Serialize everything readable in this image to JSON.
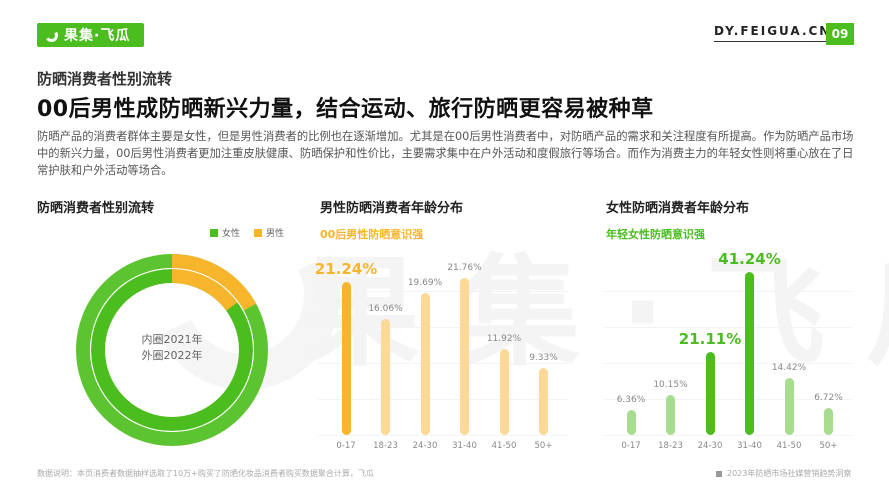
{
  "header": {
    "logo_text": "果集·飞瓜",
    "site": "DY.FEIGUA.CN",
    "page_number": "09",
    "brand_color": "#4cbd1f"
  },
  "watermark": "果集·飞瓜",
  "subtitle": "防晒消费者性别流转",
  "title": "00后男性成防晒新兴力量，结合运动、旅行防晒更容易被种草",
  "paragraph": "防晒产品的消费者群体主要是女性，但是男性消费者的比例也在逐渐增加。尤其是在00后男性消费者中，对防晒产品的需求和关注程度有所提高。作为防晒产品市场中的新兴力量，00后男性消费者更加注重皮肤健康、防晒保护和性价比，主要需求集中在户外活动和度假旅行等场合。而作为消费主力的年轻女性则将重心放在了日常护肤和户外活动等场合。",
  "footer": {
    "note": "数据说明：本页消费者数据抽样选取了10万+购买了防晒化妆品消费者购买数据聚合计算，飞瓜",
    "report": "2023年防晒市场社媒营销趋势洞察"
  },
  "chart_data": [
    {
      "type": "pie",
      "variant": "double-donut",
      "title": "防晒消费者性别流转",
      "center_label": [
        "内圈2021年",
        "外圈2022年"
      ],
      "legend": [
        {
          "name": "女性",
          "color": "#4cbd1f"
        },
        {
          "name": "男性",
          "color": "#f7b52b"
        }
      ],
      "series": [
        {
          "name": "内圈2021年",
          "values": {
            "女性": 85,
            "男性": 15
          }
        },
        {
          "name": "外圈2022年",
          "values": {
            "女性": 83,
            "男性": 17
          }
        }
      ],
      "note": "Ring percentages are estimated from arc angles; not labeled in the figure"
    },
    {
      "type": "bar",
      "title": "男性防晒消费者年龄分布",
      "highlight": "00后男性防晒意识强",
      "highlight_color": "#f7b52b",
      "categories": [
        "0-17",
        "18-23",
        "24-30",
        "31-40",
        "41-50",
        "50+"
      ],
      "values": [
        21.24,
        16.06,
        19.69,
        21.76,
        11.92,
        9.33
      ],
      "labels": [
        "21.24%",
        "16.06%",
        "19.69%",
        "21.76%",
        "11.92%",
        "9.33%"
      ],
      "emphasized_index": 0,
      "unit": "%"
    },
    {
      "type": "bar",
      "title": "女性防晒消费者年龄分布",
      "highlight": "年轻女性防晒意识强",
      "highlight_color": "#4cbd1f",
      "categories": [
        "0-17",
        "18-23",
        "24-30",
        "31-40",
        "41-50",
        "50+"
      ],
      "values": [
        6.36,
        10.15,
        21.11,
        41.24,
        14.42,
        6.72
      ],
      "labels": [
        "6.36%",
        "10.15%",
        "21.11%",
        "41.24%",
        "14.42%",
        "6.72%"
      ],
      "emphasized_indices": [
        2,
        3
      ],
      "unit": "%"
    }
  ]
}
